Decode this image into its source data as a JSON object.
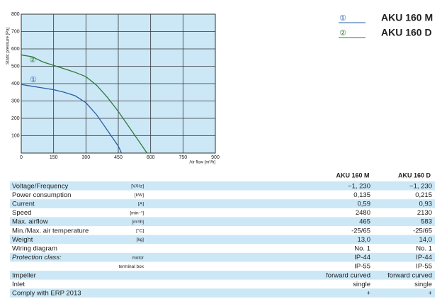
{
  "chart_data": {
    "type": "line",
    "xlabel": "Air flow [m³/h]",
    "ylabel": "Static pressure [Pa]",
    "xlim": [
      0,
      900
    ],
    "xticks": [
      0,
      150,
      300,
      450,
      600,
      750,
      900
    ],
    "ylim": [
      0,
      800
    ],
    "yticks": [
      100,
      200,
      300,
      400,
      500,
      600,
      700,
      800
    ],
    "grid": true,
    "background": "#cce8f7",
    "series": [
      {
        "name": "AKU 160 M",
        "marker_label": "①",
        "color": "#2a5fa8",
        "x": [
          0,
          50,
          100,
          150,
          200,
          250,
          300,
          350,
          400,
          450,
          465
        ],
        "values": [
          395,
          385,
          375,
          365,
          350,
          330,
          290,
          220,
          130,
          40,
          0
        ]
      },
      {
        "name": "AKU 160 D",
        "marker_label": "②",
        "color": "#2f7a3a",
        "x": [
          0,
          50,
          100,
          150,
          200,
          250,
          300,
          350,
          400,
          450,
          500,
          550,
          583
        ],
        "values": [
          565,
          555,
          525,
          505,
          485,
          465,
          440,
          390,
          320,
          240,
          150,
          60,
          0
        ]
      }
    ]
  },
  "table": {
    "header": [
      "AKU 160 M",
      "AKU 160 D"
    ],
    "rows": [
      [
        "Voltage/Frequency",
        "[V/Hz]",
        "~1, 230",
        "~1, 230"
      ],
      [
        "Power consumption",
        "[kW]",
        "0,135",
        "0,215"
      ],
      [
        "Current",
        "[A]",
        "0,59",
        "0,93"
      ],
      [
        "Speed",
        "[min⁻¹]",
        "2480",
        "2130"
      ],
      [
        "Max. airflow",
        "[m³/h]",
        "465",
        "583"
      ],
      [
        "Min./Max. air temperature",
        "[°C]",
        "-25/65",
        "-25/65"
      ],
      [
        "Weight",
        "[kg]",
        "13,0",
        "14,0"
      ],
      [
        "Wiring diagram",
        null,
        "No. 1",
        "No. 1"
      ],
      [
        "Protection class:",
        "motor",
        "IP-44",
        "IP-44"
      ],
      [
        null,
        "terminal box",
        "IP-55",
        "IP-55"
      ],
      [
        "Impeller",
        null,
        "forward curved",
        "forward curved"
      ],
      [
        "Inlet",
        null,
        "single",
        "single"
      ],
      [
        "Comply with ERP 2013",
        null,
        "+",
        "+"
      ]
    ]
  }
}
